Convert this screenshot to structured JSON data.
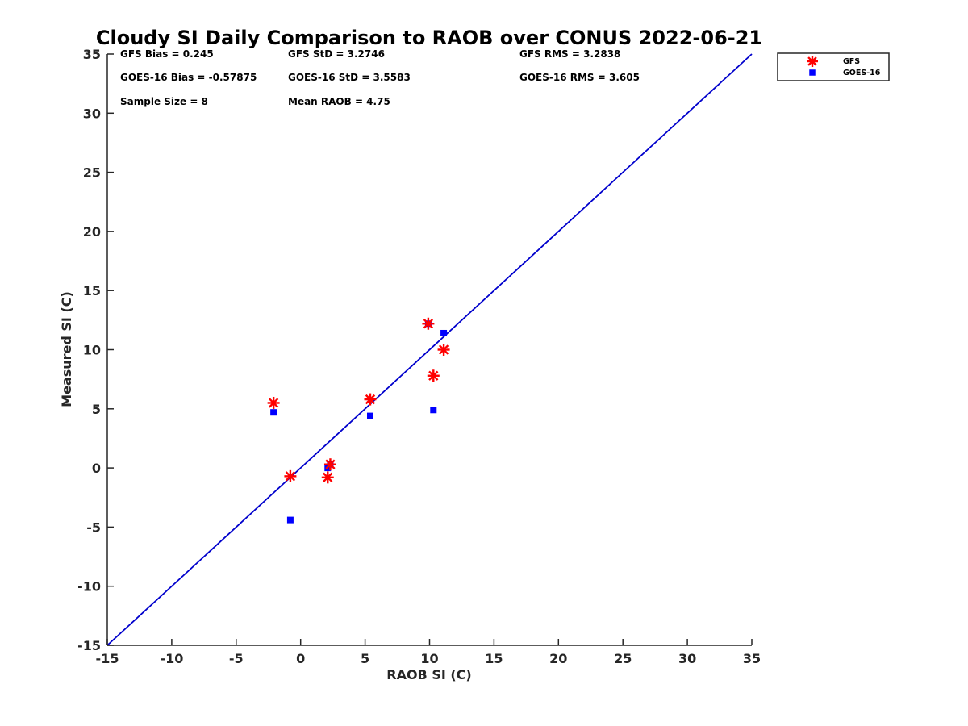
{
  "chart_data": {
    "type": "scatter",
    "title": "Cloudy SI Daily Comparison to RAOB over CONUS 2022-06-21",
    "xlabel": "RAOB SI (C)",
    "ylabel": "Measured SI (C)",
    "xlim": [
      -15,
      35
    ],
    "ylim": [
      -15,
      35
    ],
    "xticks": [
      -15,
      -10,
      -5,
      0,
      5,
      10,
      15,
      20,
      25,
      30,
      35
    ],
    "yticks": [
      -15,
      -10,
      -5,
      0,
      5,
      10,
      15,
      20,
      25,
      30,
      35
    ],
    "grid": false,
    "legend_position": "top-right-outside",
    "reference_line": {
      "x": [
        -15,
        35
      ],
      "y": [
        -15,
        35
      ],
      "color": "#0000cc"
    },
    "stats": [
      "GFS Bias = 0.245",
      "GFS StD = 3.2746",
      "GFS RMS = 3.2838",
      "GOES-16 Bias = -0.57875",
      "GOES-16 StD = 3.5583",
      "GOES-16 RMS = 3.605",
      "Sample Size = 8",
      "Mean RAOB = 4.75"
    ],
    "series": [
      {
        "name": "GFS",
        "marker": "asterisk",
        "color": "#ff0000",
        "x": [
          -2.1,
          -0.8,
          2.1,
          2.3,
          5.4,
          9.9,
          10.3,
          11.1
        ],
        "y": [
          5.5,
          -0.7,
          -0.8,
          0.3,
          5.8,
          12.2,
          7.8,
          10.0
        ]
      },
      {
        "name": "GOES-16",
        "marker": "square",
        "color": "#0000ff",
        "x": [
          -2.1,
          -0.8,
          2.1,
          2.3,
          5.4,
          9.9,
          10.3,
          11.1
        ],
        "y": [
          4.7,
          -4.4,
          0.0,
          0.3,
          4.4,
          12.2,
          4.9,
          11.4
        ]
      }
    ]
  }
}
